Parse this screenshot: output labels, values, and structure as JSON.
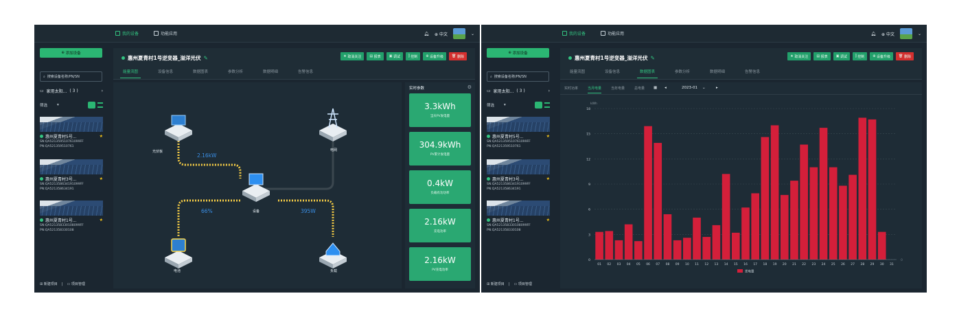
{
  "colors": {
    "accent": "#2bb673",
    "bar": "#d41f3a",
    "danger": "#d4302f",
    "flow": "#3a8fe6"
  },
  "nav": {
    "tabs": [
      "我的设备",
      "功能应用"
    ],
    "lang": "中文"
  },
  "sidebar": {
    "add_device": "添加设备",
    "search_placeholder": "搜索设备名称/PN/SN",
    "folder": {
      "name": "家用太阳...",
      "count": "( 3 )"
    },
    "filter_label": "筛选",
    "devices": [
      {
        "name": "惠州夏青村5号...",
        "sn": "SN:QA52135951076109​9FF",
        "pn": "PN:QA52135951076​1"
      },
      {
        "name": "惠州夏青村3号...",
        "sn": "SN:QA52135863419109​9FF",
        "pn": "PN:QA5213586341​91"
      },
      {
        "name": "惠州夏青村1号...",
        "sn": "SN:QA52135833010809​9FF",
        "pn": "PN:QA5213583301​08"
      }
    ],
    "footer": {
      "new_project": "新建项目",
      "separator": "|",
      "manage_project": "项目管理"
    }
  },
  "device": {
    "title": "惠州夏青村1号逆变器_溢洋光伏",
    "actions": [
      "取消关注",
      "报表",
      "调试",
      "控制",
      "设备升级",
      "删除"
    ],
    "tabs": [
      "能量流图",
      "设备信息",
      "数据图表",
      "参数分析",
      "数据明细",
      "告警信息"
    ]
  },
  "flow": {
    "nodes": {
      "pv": "光伏板",
      "grid": "电网",
      "device": "设备",
      "battery": "电池",
      "load": "负载"
    },
    "values": {
      "pv_to_device": "2.16kW",
      "battery_soc": "66%",
      "device_to_load": "395W"
    }
  },
  "realtime": {
    "title": "实时参数",
    "metrics": [
      {
        "value": "3.3kWh",
        "label": "当天PV发电量"
      },
      {
        "value": "304.9kWh",
        "label": "PV累计发电量"
      },
      {
        "value": "0.4kW",
        "label": "负载有功功率"
      },
      {
        "value": "2.16kW",
        "label": "充电功率"
      },
      {
        "value": "2.16kW",
        "label": "PV充电功率"
      }
    ]
  },
  "chart_panel": {
    "sub_tabs": [
      "实时功率",
      "当月电量",
      "当年电量",
      "总电量"
    ],
    "month": "2023-01",
    "prev": "◂",
    "next": "▸",
    "dropdown": "⌄"
  },
  "chart_data": {
    "type": "bar",
    "categories": [
      "01",
      "02",
      "03",
      "04",
      "05",
      "06",
      "07",
      "08",
      "09",
      "10",
      "11",
      "12",
      "13",
      "14",
      "15",
      "16",
      "17",
      "18",
      "19",
      "20",
      "21",
      "22",
      "23",
      "24",
      "25",
      "26",
      "27",
      "28",
      "29",
      "30",
      "31"
    ],
    "series": [
      {
        "name": "发电量",
        "values": [
          3.3,
          3.4,
          2.3,
          4.2,
          2.2,
          15.9,
          13.9,
          5.4,
          2.3,
          2.6,
          5.0,
          2.7,
          4.1,
          10.2,
          3.2,
          6.2,
          7.9,
          14.6,
          16.0,
          7.7,
          9.4,
          13.7,
          11.0,
          15.7,
          11.0,
          8.8,
          10.1,
          16.9,
          16.7,
          3.3,
          0
        ]
      }
    ],
    "ylabel": "kWh",
    "yticks": [
      0,
      3,
      6,
      9,
      12,
      15,
      18
    ],
    "ylim": [
      0,
      18
    ]
  }
}
